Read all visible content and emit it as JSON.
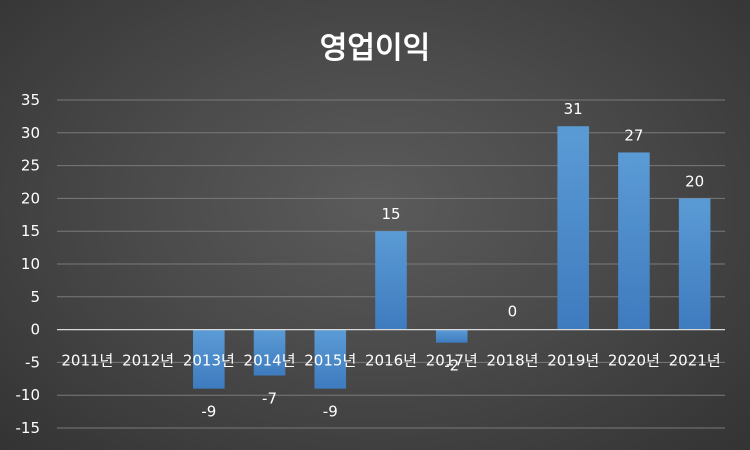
{
  "chart_data": {
    "type": "bar",
    "title": "영업이익",
    "categories": [
      "2011년",
      "2012년",
      "2013년",
      "2014년",
      "2015년",
      "2016년",
      "2017년",
      "2018년",
      "2019년",
      "2020년",
      "2021년"
    ],
    "values": [
      null,
      null,
      -9,
      -7,
      -9,
      15,
      -2,
      0,
      31,
      27,
      20
    ],
    "data_labels": [
      "",
      "",
      "-9",
      "-7",
      "-9",
      "15",
      "-2",
      "0",
      "31",
      "27",
      "20"
    ],
    "ylim": [
      -15,
      35
    ],
    "yticks": [
      35,
      30,
      25,
      20,
      15,
      10,
      5,
      0,
      -5,
      -10,
      -15
    ],
    "grid": true,
    "legend": "none",
    "bar_color": "#5b9bd5",
    "bar_color_dark": "#3e7bbf"
  }
}
